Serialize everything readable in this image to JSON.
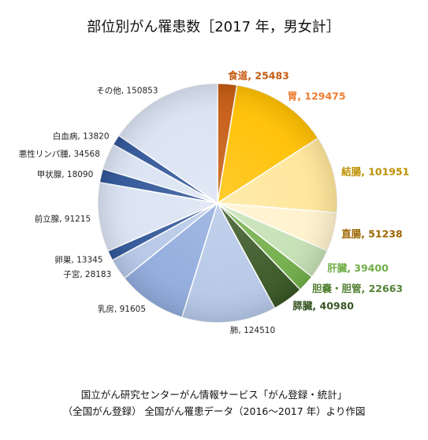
{
  "chart_data": {
    "type": "pie",
    "title": "部位別がん罹患数［2017 年，男女計］",
    "slices": [
      {
        "label": "食道",
        "value": 25483,
        "color": "#C55A11",
        "label_color": "#C55A11",
        "bold": true
      },
      {
        "label": "胃",
        "value": 129475,
        "color": "#FFC000",
        "label_color": "#ED7D31",
        "bold": true
      },
      {
        "label": "結腸",
        "value": 101951,
        "color": "#FFE699",
        "label_color": "#BF9000",
        "bold": true
      },
      {
        "label": "直腸",
        "value": 51238,
        "color": "#FFF2CC",
        "label_color": "#9C6500",
        "bold": true
      },
      {
        "label": "肝臓",
        "value": 39400,
        "color": "#C5E0B4",
        "label_color": "#70AD47",
        "bold": true
      },
      {
        "label": "胆嚢・胆管",
        "value": 22663,
        "color": "#70AD47",
        "label_color": "#548235",
        "bold": true
      },
      {
        "label": "膵臓",
        "value": 40980,
        "color": "#375623",
        "label_color": "#375623",
        "bold": true
      },
      {
        "label": "肺",
        "value": 124510,
        "color": "#B4C7E7",
        "label_color": "#222222",
        "bold": false
      },
      {
        "label": "乳房",
        "value": 91605,
        "color": "#8FAADC",
        "label_color": "#222222",
        "bold": false
      },
      {
        "label": "子宮",
        "value": 28183,
        "color": "#B4C7E7",
        "label_color": "#222222",
        "bold": false
      },
      {
        "label": "卵巣",
        "value": 13345,
        "color": "#2F5597",
        "label_color": "#222222",
        "bold": false
      },
      {
        "label": "前立腺",
        "value": 91215,
        "color": "#DAE3F3",
        "label_color": "#222222",
        "bold": false
      },
      {
        "label": "甲状腺",
        "value": 18090,
        "color": "#2F5597",
        "label_color": "#222222",
        "bold": false
      },
      {
        "label": "悪性リンパ腫",
        "value": 34568,
        "color": "#DAE3F3",
        "label_color": "#222222",
        "bold": false
      },
      {
        "label": "白血病",
        "value": 13820,
        "color": "#2F5597",
        "label_color": "#222222",
        "bold": false
      },
      {
        "label": "その他",
        "value": 150853,
        "color": "#DAE3F3",
        "label_color": "#222222",
        "bold": false
      }
    ],
    "start_angle_deg": 0,
    "direction": "clockwise",
    "legend": "none"
  },
  "caption": {
    "line1": "国立がん研究センターがん情報サービス「がん登録・統計」",
    "line2": "（全国がん登録） 全国がん罹患データ（2016～2017 年）より作図"
  }
}
